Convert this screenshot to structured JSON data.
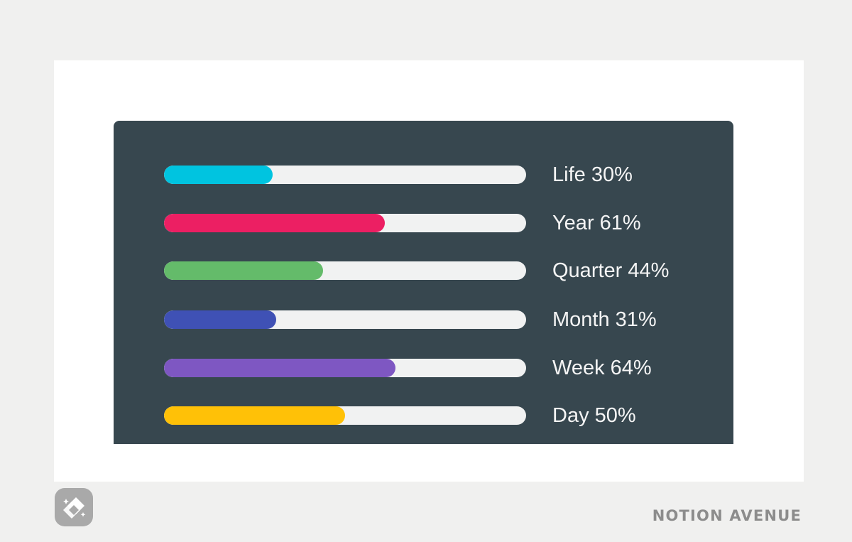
{
  "progress_bars": [
    {
      "label": "Life 30%",
      "value": 30,
      "color": "#00c4e0"
    },
    {
      "label": "Year 61%",
      "value": 61,
      "color": "#ec1f63"
    },
    {
      "label": "Quarter 44%",
      "value": 44,
      "color": "#64bb6a"
    },
    {
      "label": "Month 31%",
      "value": 31,
      "color": "#3f51b5"
    },
    {
      "label": "Week 64%",
      "value": 64,
      "color": "#7e57c2"
    },
    {
      "label": "Day 50%",
      "value": 50,
      "color": "#ffc107"
    }
  ],
  "footer": {
    "logo_icon": "notion-avenue-logo-icon",
    "brand_text": "NOTION AVENUE"
  },
  "colors": {
    "widget_background": "#37474f",
    "track": "#f1f2f2",
    "page_background": "#f0f0ef"
  }
}
